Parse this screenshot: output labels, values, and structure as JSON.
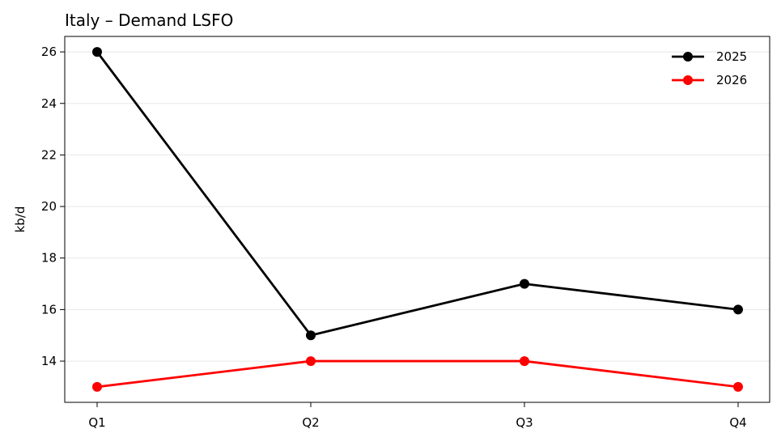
{
  "chart_data": {
    "type": "line",
    "title": "Italy – Demand LSFO",
    "xlabel": "",
    "ylabel": "kb/d",
    "categories": [
      "Q1",
      "Q2",
      "Q3",
      "Q4"
    ],
    "series": [
      {
        "name": "2025",
        "values": [
          26,
          15,
          17,
          16
        ],
        "color": "#000000"
      },
      {
        "name": "2026",
        "values": [
          13,
          14,
          14,
          13
        ],
        "color": "#ff0000"
      }
    ],
    "ylim": [
      12.4,
      26.6
    ],
    "yticks": [
      14,
      16,
      18,
      20,
      22,
      24,
      26
    ],
    "grid": "horizontal",
    "legend": "top-right"
  }
}
